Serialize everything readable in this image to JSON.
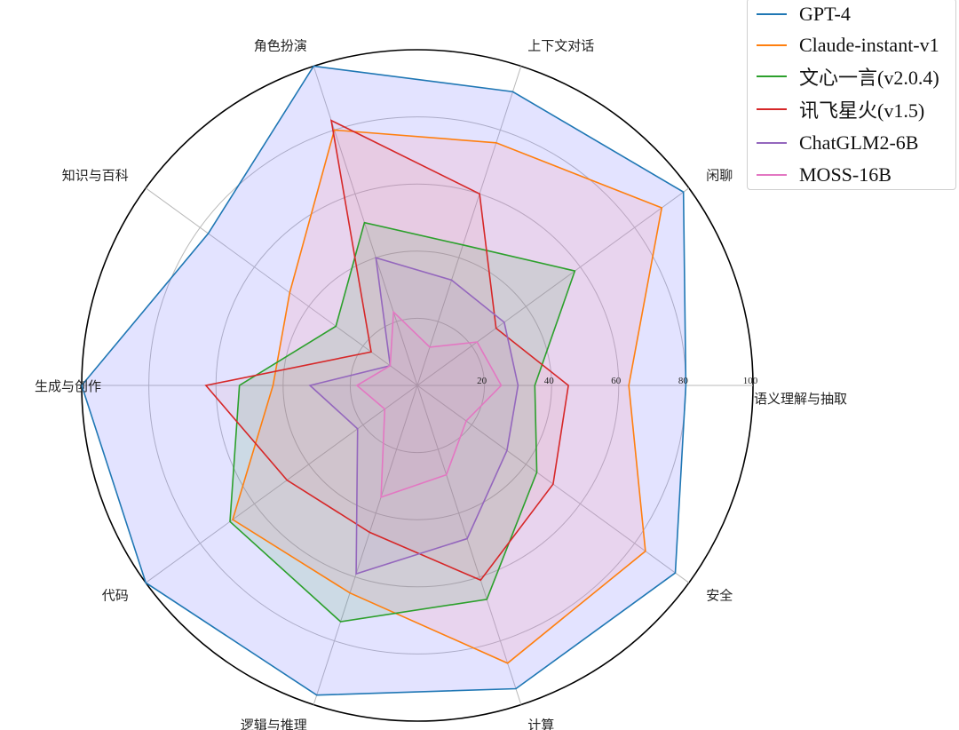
{
  "chart_data": {
    "type": "radar",
    "axes": [
      "语义理解与抽取",
      "闲聊",
      "上下文对话",
      "角色扮演",
      "知识与百科",
      "生成与创作",
      "代码",
      "逻辑与推理",
      "计算",
      "安全"
    ],
    "rlim": [
      0,
      100
    ],
    "r_ticks": [
      20,
      40,
      60,
      80,
      100
    ],
    "grid": true,
    "legend_position": "top-right",
    "series": [
      {
        "name": "GPT-4",
        "color": "#1f77b4",
        "fill": "#8080ff",
        "fill_alpha": 0.22,
        "values": [
          80,
          98,
          92,
          100,
          77,
          100,
          100,
          97,
          95,
          95
        ]
      },
      {
        "name": "Claude-instant-v1",
        "color": "#ff7f0e",
        "fill": "#ff8fa0",
        "fill_alpha": 0.18,
        "values": [
          63,
          90,
          76,
          80,
          47,
          43,
          68,
          65,
          87,
          84
        ]
      },
      {
        "name": "文心一言(v2.0.4)",
        "color": "#2ca02c",
        "fill": "#2ca02c",
        "fill_alpha": 0.12,
        "values": [
          35,
          58,
          44,
          51,
          30,
          53,
          69,
          74,
          67,
          44
        ]
      },
      {
        "name": "讯飞星火(v1.5)",
        "color": "#d62728",
        "fill": "#d62728",
        "fill_alpha": 0.05,
        "values": [
          45,
          29,
          60,
          83,
          17,
          63,
          48,
          46,
          61,
          50
        ]
      },
      {
        "name": "ChatGLM2-6B",
        "color": "#9467bd",
        "fill": "#9467bd",
        "fill_alpha": 0.08,
        "values": [
          30,
          32,
          33,
          40,
          10,
          32,
          22,
          59,
          48,
          33
        ]
      },
      {
        "name": "MOSS-16B",
        "color": "#e377c2",
        "fill": "#e377c2",
        "fill_alpha": 0.08,
        "values": [
          25,
          22,
          12,
          23,
          10,
          18,
          12,
          35,
          28,
          18
        ]
      }
    ]
  }
}
